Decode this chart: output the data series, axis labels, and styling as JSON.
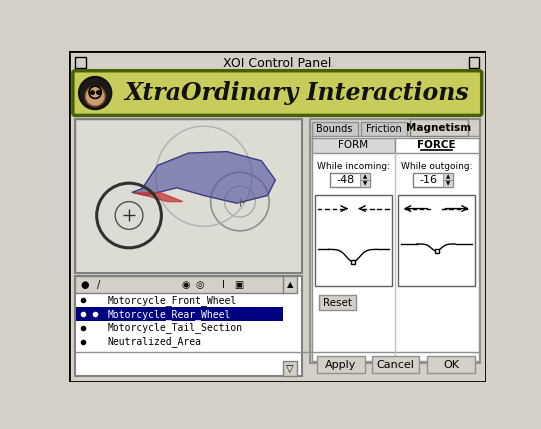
{
  "title": "XOI Control Panel",
  "header_bg": "#c8cc5a",
  "header_text": "XtraOrdinary Interactions",
  "tabs": [
    "Bounds",
    "Friction",
    "Magnetism"
  ],
  "active_tab_idx": 2,
  "subtab_form": "FORM",
  "subtab_force": "FORCE",
  "incoming_value": "-48",
  "outgoing_value": "-16",
  "list_items": [
    "Motorcycle_Front_Wheel",
    "Motorcycle_Rear_Wheel",
    "Motorcycle_Tail_Section",
    "Neutralized_Area"
  ],
  "selected_item": 1,
  "button_labels": [
    "Apply",
    "Cancel",
    "OK"
  ],
  "reset_label": "Reset",
  "window_color": "#d4d0c8",
  "white": "#ffffff",
  "black": "#000000",
  "dark_gray": "#808080",
  "selected_bg": "#000080",
  "selected_fg": "#ffffff",
  "header_border": "#4a6000",
  "graph_border": "#606060"
}
